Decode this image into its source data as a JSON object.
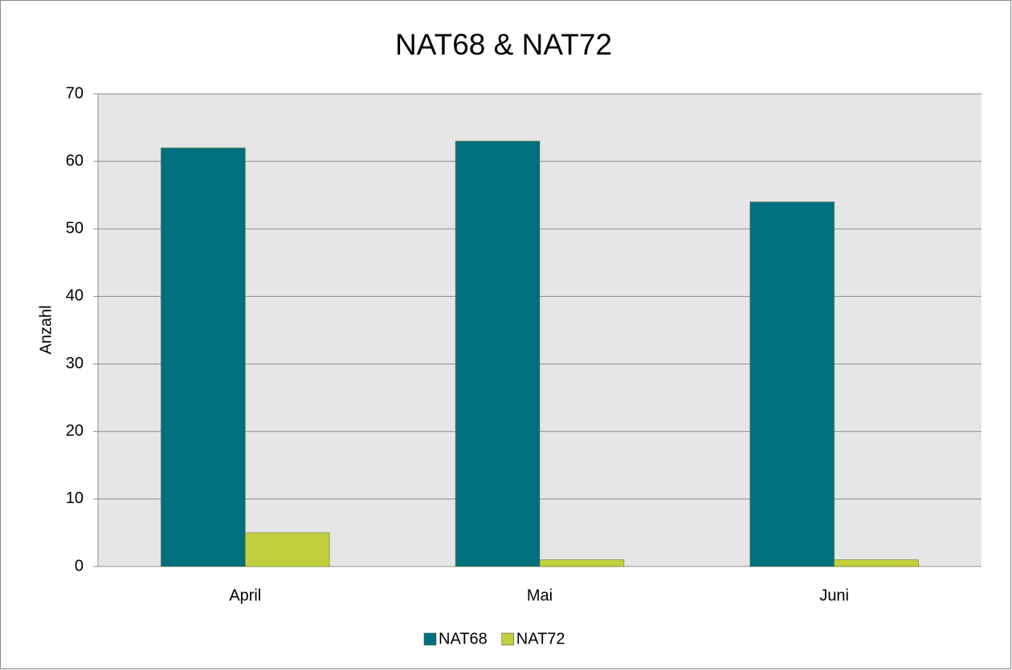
{
  "chart_data": {
    "type": "bar",
    "title": "NAT68 & NAT72",
    "y_label": "Anzahl",
    "categories": [
      "April",
      "Mai",
      "Juni"
    ],
    "series": [
      {
        "name": "NAT68",
        "color": "#00707f",
        "values": [
          62,
          63,
          54
        ]
      },
      {
        "name": "NAT72",
        "color": "#c3d03f",
        "values": [
          5,
          1,
          1
        ]
      }
    ],
    "ylim": [
      0,
      70
    ],
    "yticks": [
      0,
      10,
      20,
      30,
      40,
      50,
      60,
      70
    ],
    "grid": true,
    "legend": "bottom"
  }
}
